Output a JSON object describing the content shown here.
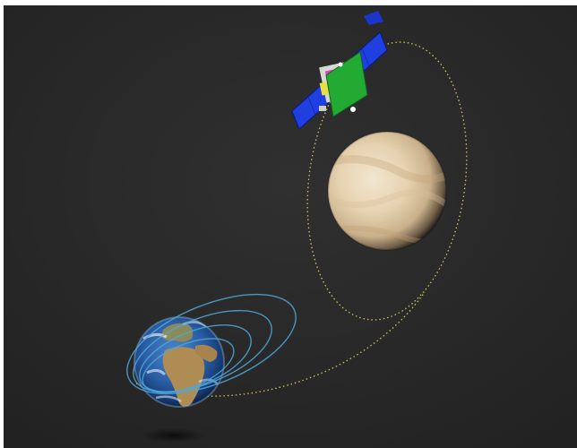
{
  "scene": {
    "background_color": "#2a2a2a",
    "bodies": [
      {
        "name": "earth",
        "icon": "earth-globe"
      },
      {
        "name": "venus",
        "icon": "venus-planet"
      },
      {
        "name": "spacecraft",
        "icon": "satellite-with-solar-panels"
      }
    ],
    "colors": {
      "earth_ocean": "#2d5fa8",
      "earth_land": "#a58a5a",
      "venus": "#e8d5b5",
      "orbit_path": "#c8b85a",
      "earth_orbits": "#4fa8d8",
      "solar_panel": "#1f3fe0",
      "radar_panel": "#22aa33"
    }
  }
}
